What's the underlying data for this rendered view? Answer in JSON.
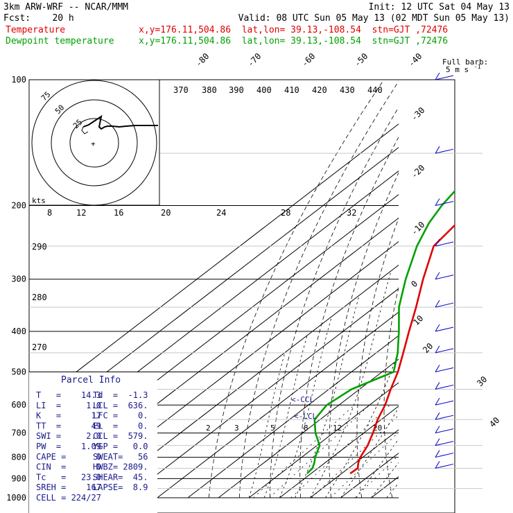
{
  "header": {
    "line1_left": "3km ARW-WRF -- NCAR/MMM",
    "line1_right": "Init: 12 UTC Sat 04 May 13",
    "line2_left": "Fcst:    20 h",
    "line2_right": "Valid: 08 UTC Sun 05 May 13 (02 MDT Sun 05 May 13)",
    "temp_label": "Temperature",
    "temp_loc": "x,y=176.11,504.86  lat,lon= 39.13,-108.54  stn=GJT ,72476",
    "dew_label": "Dewpoint temperature",
    "dew_loc": "x,y=176.11,504.86  lat,lon= 39.13,-108.54  stn=GJT ,72476"
  },
  "barb_legend": {
    "line1": "Full barb:",
    "line2": "5 m s",
    "exp": "-1"
  },
  "parcel": {
    "title": "Parcel Info",
    "rows": [
      [
        "T   =    14.3",
        "Td  =  -1.3"
      ],
      [
        "LI  =     1.0",
        "LCL =  636."
      ],
      [
        "K   =      17",
        "LFC =    0."
      ],
      [
        "TT  =      49",
        "EL  =    0."
      ],
      [
        "SWI =     2.0",
        "CCL =  579."
      ],
      [
        "PW  =    1.09",
        "YGP =   0.0"
      ],
      [
        "CAPE =      0",
        "SWEAT=   56"
      ],
      [
        "CIN  =      0",
        "HWBZ= 2809."
      ],
      [
        "Tc   =   23.0",
        "SHEAR=  45."
      ],
      [
        "SREH =    167",
        "LAPSE=  8.9"
      ],
      [
        "CELL = 224/27",
        ""
      ]
    ]
  },
  "hodograph": {
    "axis_unit": "kts",
    "ring_labels": [
      "75",
      "50",
      "25"
    ]
  },
  "markers": {
    "ccl": "<-CCL",
    "lcl": "<-LCL"
  },
  "colors": {
    "temperature": "#e00000",
    "dewpoint": "#00a000",
    "parcel_text": "#1a1a8c",
    "wind": "#0000cc"
  },
  "chart_data": {
    "type": "line",
    "title": "",
    "xlabel": "",
    "ylabel": "",
    "pressure_levels": [
      "100",
      "200",
      "300",
      "400",
      "500",
      "600",
      "700",
      "800",
      "900",
      "1000"
    ],
    "isotherm_labels": [
      "-80",
      "-70",
      "-60",
      "-50",
      "-40",
      "-30",
      "-20",
      "-10",
      "0",
      "10",
      "20",
      "30",
      "40"
    ],
    "theta_labels": [
      "370",
      "380",
      "390",
      "400",
      "410",
      "420",
      "430",
      "440"
    ],
    "theta_e_labels": [
      "8",
      "12",
      "16",
      "20",
      "24",
      "28",
      "32"
    ],
    "theta_e_low_labels": [
      "290",
      "280",
      "270"
    ],
    "mixing_ratio_labels": [
      "2",
      "3",
      "5",
      "8",
      "12",
      "20"
    ],
    "series": [
      {
        "name": "Temperature",
        "unit": "C",
        "pressure": [
          1000,
          950,
          925,
          900,
          875,
          850,
          825,
          800,
          750,
          700,
          650,
          600,
          550,
          500,
          450,
          400,
          350,
          300,
          250,
          220,
          200,
          180,
          150,
          120,
          100
        ],
        "values": [
          null,
          null,
          null,
          null,
          12.8,
          13.0,
          10.9,
          9.2,
          6.6,
          3.0,
          -1.2,
          -4.9,
          -9.8,
          -14.8,
          -21.2,
          -28.4,
          -36.4,
          -46.0,
          -56.6,
          -58.8,
          -58.5,
          -56.3,
          -51.7,
          -46.4,
          -42.0
        ]
      },
      {
        "name": "Dewpoint temperature",
        "unit": "C",
        "pressure": [
          1000,
          950,
          925,
          900,
          875,
          850,
          825,
          800,
          750,
          700,
          650,
          600,
          550,
          500,
          450,
          400,
          350,
          300,
          250,
          220,
          200,
          180,
          150,
          120,
          100
        ],
        "values": [
          null,
          null,
          null,
          null,
          -1.3,
          -1.8,
          -3.5,
          -5.6,
          -9.1,
          -15.8,
          -21.8,
          -24.0,
          -22.6,
          -16.2,
          -23.0,
          -31.7,
          -42.0,
          -51.7,
          -62.1,
          -68.0,
          -71.2,
          -73.7,
          -74.5,
          -76.5,
          -77.0
        ]
      }
    ],
    "wind_pressures": [
      850,
      800,
      750,
      700,
      650,
      600,
      550,
      500,
      450,
      400,
      350,
      300,
      250,
      200,
      150,
      100
    ],
    "ylim": [
      1000,
      100
    ],
    "grid": true,
    "log_pressure": true
  }
}
